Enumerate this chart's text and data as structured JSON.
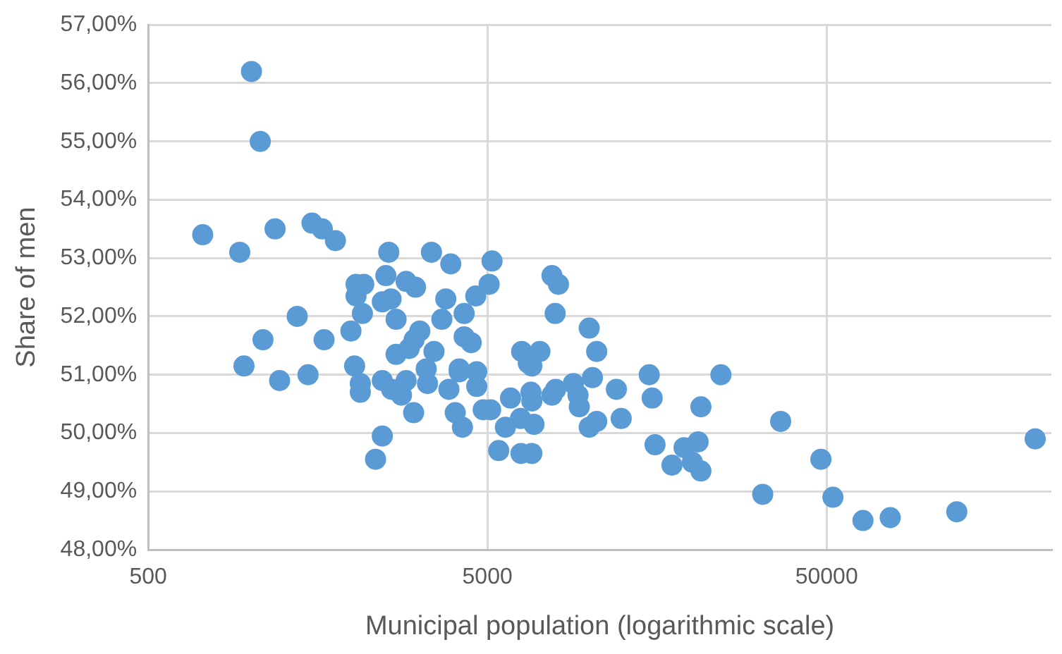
{
  "chart_data": {
    "type": "scatter",
    "xlabel": "Municipal population (logarithmic scale)",
    "ylabel": "Share of men",
    "log": "x",
    "grid": true,
    "marker": "circle",
    "legend": false,
    "xlim": [
      500,
      230000
    ],
    "xticks": [
      500,
      5000,
      50000
    ],
    "ylim": [
      48,
      57
    ],
    "yticks": [
      {
        "value": 48,
        "label": "48,00%"
      },
      {
        "value": 49,
        "label": "49,00%"
      },
      {
        "value": 50,
        "label": "50,00%"
      },
      {
        "value": 51,
        "label": "51,00%"
      },
      {
        "value": 52,
        "label": "52,00%"
      },
      {
        "value": 53,
        "label": "53,00%"
      },
      {
        "value": 54,
        "label": "54,00%"
      },
      {
        "value": 55,
        "label": "55,00%"
      },
      {
        "value": 56,
        "label": "56,00%"
      },
      {
        "value": 57,
        "label": "57,00%"
      }
    ],
    "series": [
      {
        "color": "#5b9bd5",
        "x": [
          724,
          1008,
          1070,
          931,
          958,
          1090,
          1183,
          1220,
          1375,
          1520,
          1630,
          1782,
          1480,
          1650,
          1980,
          2030,
          2050,
          2160,
          2050,
          2110,
          2110,
          2450,
          2340,
          2450,
          2560,
          2510,
          2450,
          2600,
          2690,
          2140,
          2880,
          3070,
          3420,
          3900,
          3770,
          3670,
          4270,
          4620,
          3160,
          3040,
          2940,
          2690,
          3480,
          4270,
          3300,
          3330,
          2880,
          2610,
          2790,
          3850,
          4130,
          3030,
          4020,
          4220,
          5160,
          5060,
          4480,
          4130,
          4650,
          4650,
          4860,
          5110,
          5850,
          5650,
          5400,
          6280,
          6760,
          6310,
          7140,
          6600,
          6760,
          6720,
          6760,
          7750,
          7950,
          8960,
          6260,
          6860,
          7750,
          8100,
          7920,
          9980,
          10500,
          10200,
          9250,
          9330,
          10500,
          9980,
          12000,
          12400,
          15000,
          15300,
          15600,
          17500,
          19000,
          20900,
          20100,
          21300,
          21300,
          24400,
          32400,
          36600,
          48100,
          52200,
          64000,
          77000,
          121000,
          206000
        ],
        "values": [
          53.4,
          56.2,
          55.0,
          53.1,
          51.15,
          51.6,
          53.5,
          50.9,
          52.0,
          53.6,
          53.5,
          53.3,
          51.0,
          51.6,
          51.75,
          51.15,
          52.55,
          52.55,
          52.35,
          50.85,
          50.7,
          50.9,
          49.55,
          49.95,
          53.1,
          52.7,
          52.25,
          52.3,
          51.95,
          52.05,
          52.6,
          52.5,
          53.1,
          52.9,
          52.3,
          51.95,
          52.05,
          52.35,
          51.75,
          51.6,
          51.45,
          51.35,
          51.4,
          51.65,
          51.1,
          50.85,
          50.9,
          50.75,
          50.65,
          50.75,
          51.05,
          50.35,
          50.35,
          50.1,
          52.95,
          52.55,
          51.55,
          51.1,
          51.05,
          50.8,
          50.4,
          50.4,
          50.6,
          50.1,
          49.7,
          49.65,
          49.65,
          51.4,
          51.4,
          51.2,
          51.15,
          50.7,
          50.55,
          50.65,
          50.75,
          50.85,
          50.25,
          50.15,
          52.7,
          52.55,
          52.05,
          51.8,
          51.4,
          50.95,
          50.65,
          50.45,
          50.2,
          50.1,
          50.75,
          50.25,
          51.0,
          50.6,
          49.8,
          49.45,
          49.75,
          49.85,
          49.5,
          49.35,
          50.45,
          51.0,
          48.95,
          50.2,
          49.55,
          48.9,
          48.5,
          48.55,
          48.65,
          49.9
        ]
      }
    ]
  }
}
